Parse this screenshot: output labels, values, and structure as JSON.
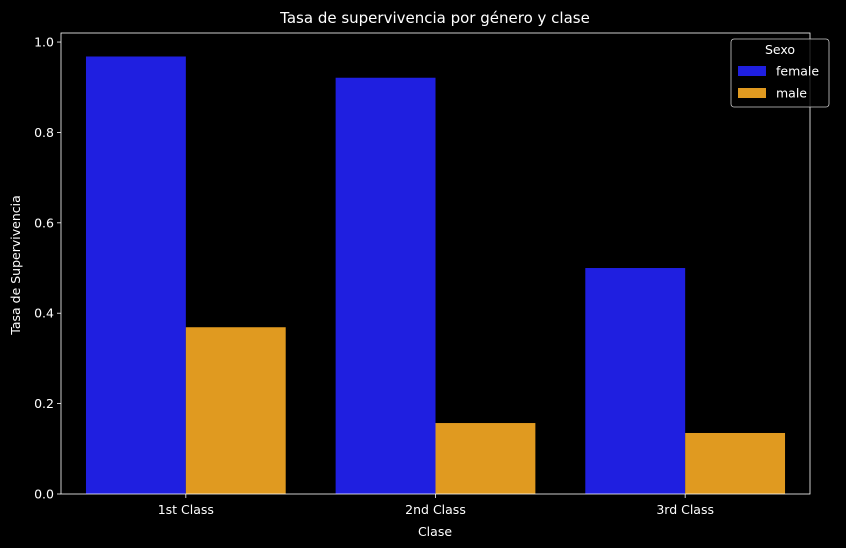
{
  "chart_data": {
    "type": "bar",
    "title": "Tasa de supervivencia por género y clase",
    "xlabel": "Clase",
    "ylabel": "Tasa de Supervivencia",
    "categories": [
      "1st Class",
      "2nd Class",
      "3rd Class"
    ],
    "series": [
      {
        "name": "female",
        "color": "#1f1fe0",
        "values": [
          0.968,
          0.921,
          0.5
        ]
      },
      {
        "name": "male",
        "color": "#e09a20",
        "values": [
          0.369,
          0.157,
          0.135
        ]
      }
    ],
    "ylim": [
      0,
      1.02
    ],
    "yticks": [
      0.0,
      0.2,
      0.4,
      0.6,
      0.8,
      1.0
    ],
    "ytick_labels": [
      "0.0",
      "0.2",
      "0.4",
      "0.6",
      "0.8",
      "1.0"
    ],
    "grid": false,
    "legend": {
      "title": "Sexo",
      "position": "top-right"
    },
    "background": "#000000",
    "foreground": "#ffffff"
  }
}
